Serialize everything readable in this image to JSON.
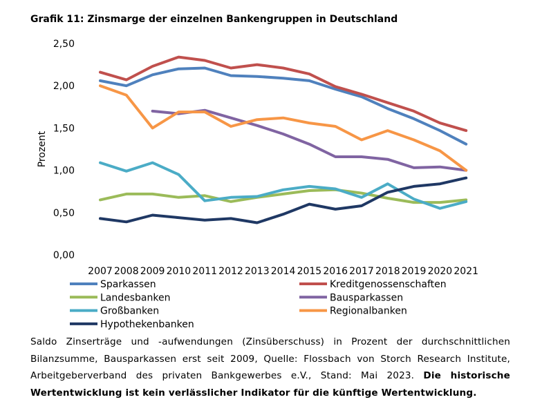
{
  "title": "Grafik 11: Zinsmarge der einzelnen Bankengruppen in Deutschland",
  "caption": {
    "text": "Saldo Zinserträge und -aufwendungen (Zinsüberschuss) in Prozent der durchschnittlichen Bilanzsumme, Bausparkassen erst seit 2009, Quelle: Flossbach von Storch Research Institute, Arbeitgeberverband des privaten Bankgewerbes e.V., Stand: Mai 2023.",
    "bold": "Die historische Wertentwicklung ist kein verlässlicher Indikator für die künftige Wertentwicklung."
  },
  "chart_data": {
    "type": "line",
    "title": "Grafik 11: Zinsmarge der einzelnen Bankengruppen in Deutschland",
    "xlabel": "",
    "ylabel": "Prozent",
    "ylim": [
      0,
      2.5
    ],
    "yticks": [
      "0,00",
      "0,50",
      "1,00",
      "1,50",
      "2,00",
      "2,50"
    ],
    "categories": [
      "2007",
      "2008",
      "2009",
      "2010",
      "2011",
      "2012",
      "2013",
      "2014",
      "2015",
      "2016",
      "2017",
      "2018",
      "2019",
      "2020",
      "2021"
    ],
    "legend_position": "bottom",
    "series": [
      {
        "name": "Sparkassen",
        "color": "#4F81BD",
        "values": [
          2.06,
          2.0,
          2.13,
          2.2,
          2.21,
          2.12,
          2.11,
          2.09,
          2.06,
          1.96,
          1.87,
          1.73,
          1.61,
          1.47,
          1.31
        ]
      },
      {
        "name": "Kreditgenossenschaften",
        "color": "#C0504D",
        "values": [
          2.16,
          2.07,
          2.23,
          2.34,
          2.3,
          2.21,
          2.25,
          2.21,
          2.14,
          1.99,
          1.9,
          1.8,
          1.7,
          1.56,
          1.47
        ]
      },
      {
        "name": "Landesbanken",
        "color": "#9BBB59",
        "values": [
          0.65,
          0.72,
          0.72,
          0.68,
          0.7,
          0.63,
          0.68,
          0.72,
          0.76,
          0.77,
          0.73,
          0.67,
          0.62,
          0.62,
          0.65
        ]
      },
      {
        "name": "Bausparkassen",
        "color": "#8064A2",
        "values": [
          null,
          null,
          1.7,
          1.67,
          1.71,
          1.62,
          1.53,
          1.43,
          1.31,
          1.16,
          1.16,
          1.13,
          1.03,
          1.04,
          1.0
        ]
      },
      {
        "name": "Großbanken",
        "color": "#4BACC6",
        "values": [
          1.09,
          0.99,
          1.09,
          0.95,
          0.64,
          0.68,
          0.69,
          0.77,
          0.81,
          0.78,
          0.68,
          0.84,
          0.66,
          0.55,
          0.63
        ]
      },
      {
        "name": "Regionalbanken",
        "color": "#F79646",
        "values": [
          2.0,
          1.89,
          1.5,
          1.69,
          1.69,
          1.52,
          1.6,
          1.62,
          1.56,
          1.52,
          1.36,
          1.47,
          1.36,
          1.23,
          1.0
        ]
      },
      {
        "name": "Hypothekenbanken",
        "color": "#1F3864",
        "values": [
          0.43,
          0.39,
          0.47,
          0.44,
          0.41,
          0.43,
          0.38,
          0.48,
          0.6,
          0.54,
          0.58,
          0.74,
          0.81,
          0.84,
          0.91
        ]
      }
    ]
  }
}
